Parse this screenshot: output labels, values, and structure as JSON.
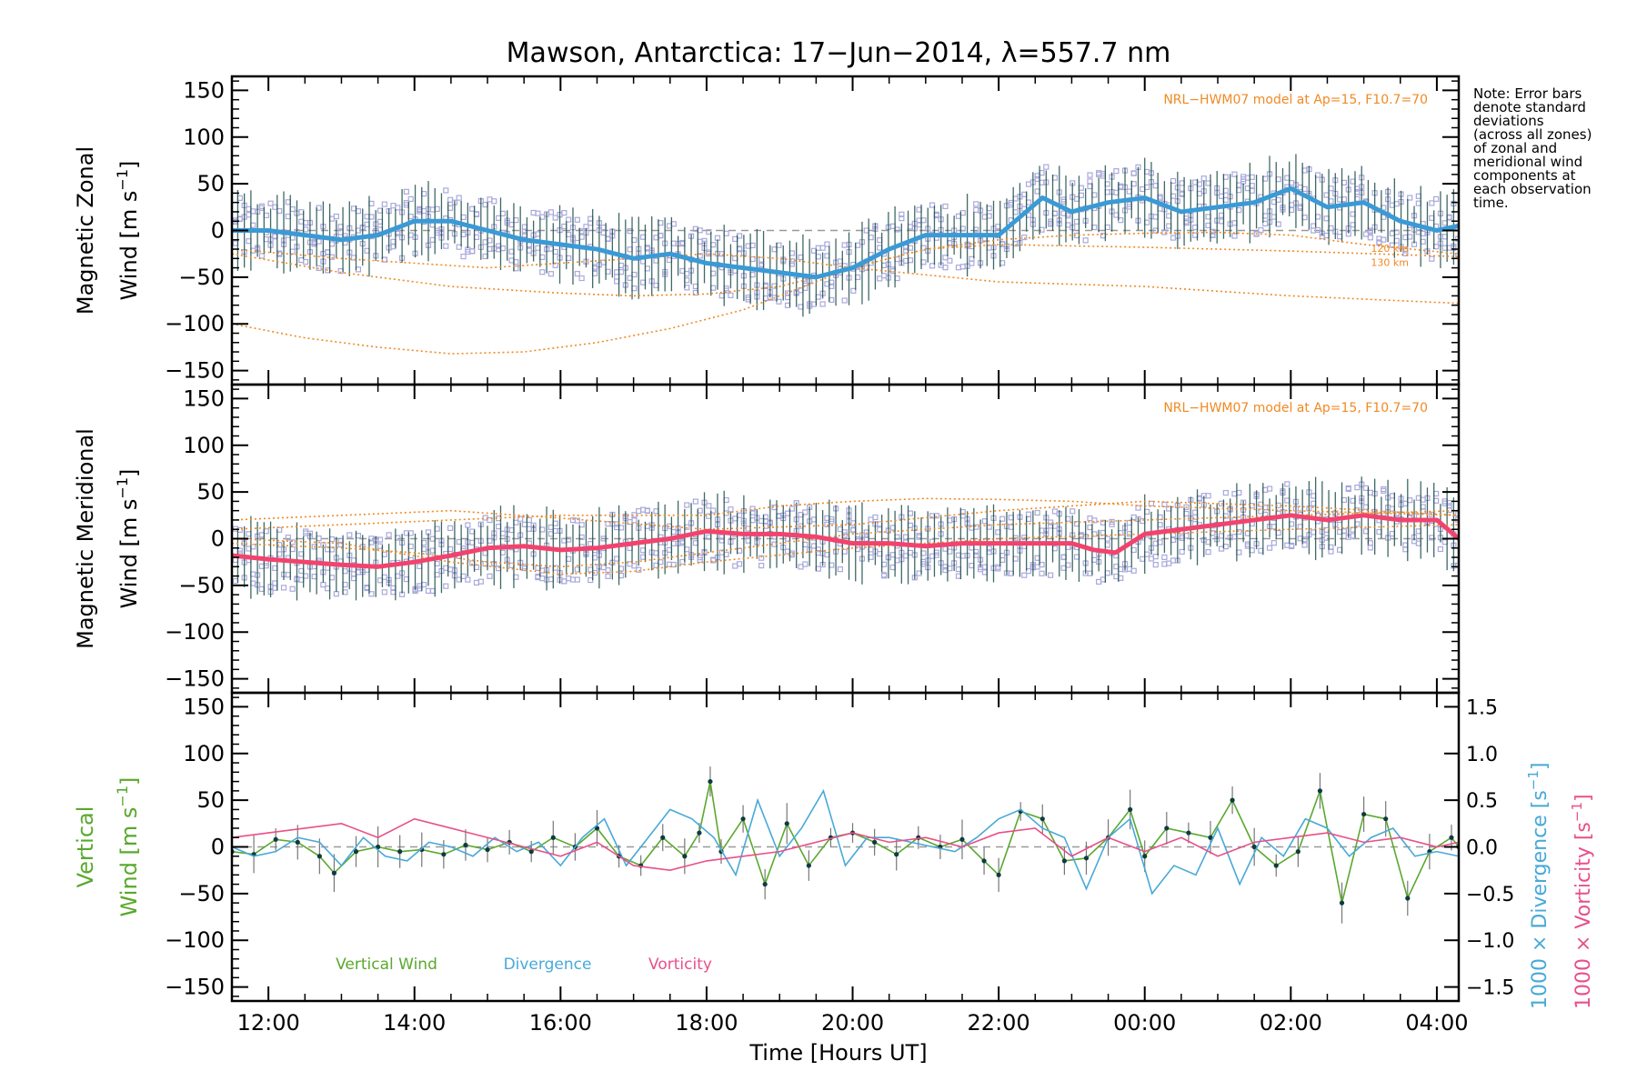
{
  "chart_data": {
    "type": "line",
    "title": "Mawson, Antarctica: 17−Jun−2014, λ=557.7 nm",
    "xlabel": "Time [Hours UT]",
    "x_tick_labels": [
      "12:00",
      "14:00",
      "16:00",
      "18:00",
      "20:00",
      "22:00",
      "00:00",
      "02:00",
      "04:00"
    ],
    "x_tick_hours": [
      12,
      14,
      16,
      18,
      20,
      22,
      24,
      26,
      28
    ],
    "xlim_hours": [
      11.5,
      28.3
    ],
    "note_lines": [
      "Note: Error bars",
      "denote standard",
      "deviations",
      "(across all zones)",
      "of zonal and",
      "meridional wind",
      "components at",
      "each observation",
      "time."
    ],
    "colors": {
      "zonal": "#3a9ad6",
      "zonal_gap": "#2b4fd6",
      "meridional": "#f2436e",
      "model": "#f08a24",
      "vertical": "#5aa82e",
      "divergence": "#48a9d8",
      "vorticity": "#e8508a",
      "errorbar": "#1f4f4a",
      "zone_points": "#a9a9dc",
      "dashed": "#999999"
    },
    "panels": [
      {
        "id": "zonal",
        "ylabel_line1": "Magnetic Zonal",
        "ylabel_line2": "Wind [m s",
        "ylabel_sup": "−1",
        "ylabel_close": "]",
        "ylim": [
          -165,
          165
        ],
        "y_ticks": [
          150,
          100,
          50,
          0,
          -50,
          -100,
          -150
        ],
        "y_tick_labels": [
          "150",
          "100",
          "50",
          "0",
          "−50",
          "−100",
          "−150"
        ],
        "model_label": "NRL−HWM07 model at Ap=15, F10.7=70",
        "model_altitudes": [
          "120 km",
          "130 km"
        ],
        "series": [
          {
            "name": "zonal",
            "x": [
              11.5,
              12,
              12.5,
              13,
              13.5,
              14,
              14.5,
              15,
              15.5,
              16,
              16.5,
              17,
              17.5,
              18,
              18.5,
              19,
              19.5,
              20,
              20.5,
              21,
              21.5,
              22,
              22.3,
              22.6,
              23,
              23.5,
              24,
              24.5,
              25,
              25.5,
              26,
              26.5,
              27,
              27.5,
              28,
              28.3
            ],
            "y": [
              0,
              0,
              -5,
              -10,
              -5,
              10,
              10,
              0,
              -10,
              -15,
              -20,
              -30,
              -25,
              -35,
              -40,
              -45,
              -50,
              -40,
              -20,
              -5,
              -5,
              -5,
              15,
              35,
              20,
              30,
              35,
              20,
              25,
              30,
              45,
              25,
              30,
              10,
              0,
              5
            ]
          }
        ],
        "models": [
          {
            "name": "model-1",
            "x": [
              11.5,
              13,
              15,
              17,
              18,
              19,
              20,
              22,
              24,
              26,
              28.3
            ],
            "y": [
              -20,
              -30,
              -40,
              -30,
              -25,
              -30,
              -40,
              -55,
              -60,
              -70,
              -78
            ]
          },
          {
            "name": "model-2",
            "x": [
              11.5,
              13,
              14.5,
              16,
              17,
              18,
              19,
              20,
              21,
              22,
              24,
              26,
              28.3
            ],
            "y": [
              -25,
              -45,
              -60,
              -67,
              -70,
              -68,
              -60,
              -40,
              -20,
              -15,
              -18,
              -22,
              -28
            ]
          },
          {
            "name": "model-3",
            "x": [
              11.5,
              12.5,
              13.5,
              14.5,
              15.5,
              16.5,
              17.5,
              18.5,
              19,
              19.5,
              20,
              21,
              22,
              23,
              24,
              25,
              26,
              27,
              28.3
            ],
            "y": [
              -100,
              -115,
              -125,
              -132,
              -130,
              -120,
              -105,
              -85,
              -70,
              -55,
              -40,
              -20,
              -10,
              -5,
              -3,
              -2,
              -5,
              -15,
              -25
            ]
          }
        ]
      },
      {
        "id": "meridional",
        "ylabel_line1": "Magnetic Meridional",
        "ylabel_line2": "Wind [m s",
        "ylabel_sup": "−1",
        "ylabel_close": "]",
        "ylim": [
          -165,
          165
        ],
        "y_ticks": [
          150,
          100,
          50,
          0,
          -50,
          -100,
          -150
        ],
        "y_tick_labels": [
          "150",
          "100",
          "50",
          "0",
          "−50",
          "−100",
          "−150"
        ],
        "model_label": "NRL−HWM07 model at Ap=15, F10.7=70",
        "series": [
          {
            "name": "meridional",
            "x": [
              11.5,
              12,
              12.5,
              13,
              13.5,
              14,
              14.5,
              15,
              15.5,
              16,
              16.5,
              17,
              17.5,
              18,
              18.5,
              19,
              19.5,
              20,
              20.5,
              21,
              21.5,
              22,
              22.5,
              23,
              23.3,
              23.6,
              24,
              24.5,
              25,
              25.5,
              26,
              26.5,
              27,
              27.5,
              28,
              28.3
            ],
            "y": [
              -18,
              -22,
              -25,
              -28,
              -30,
              -25,
              -18,
              -10,
              -8,
              -12,
              -10,
              -5,
              0,
              8,
              5,
              5,
              2,
              -5,
              -5,
              -8,
              -5,
              -5,
              -5,
              -5,
              -12,
              -15,
              5,
              10,
              15,
              20,
              25,
              20,
              25,
              20,
              20,
              0
            ]
          }
        ],
        "models": [
          {
            "name": "model-1",
            "x": [
              11.5,
              13,
              14.5,
              16,
              18,
              20,
              22,
              24,
              26,
              28.3
            ],
            "y": [
              20,
              25,
              30,
              22,
              10,
              15,
              30,
              40,
              35,
              25
            ]
          },
          {
            "name": "model-2",
            "x": [
              11.5,
              13,
              14.5,
              16,
              18,
              19,
              20,
              21,
              22,
              23,
              24,
              26,
              28.3
            ],
            "y": [
              10,
              15,
              20,
              25,
              25,
              35,
              40,
              43,
              42,
              40,
              35,
              30,
              25
            ]
          },
          {
            "name": "model-3",
            "x": [
              11.5,
              13,
              14.5,
              16,
              17,
              18,
              20,
              22,
              24,
              26,
              28.3
            ],
            "y": [
              0,
              -5,
              -25,
              -38,
              -35,
              -25,
              -10,
              0,
              5,
              10,
              15
            ]
          },
          {
            "name": "model-4",
            "x": [
              11.5,
              13,
              14,
              15,
              16,
              17,
              18,
              19,
              20,
              21,
              22,
              24,
              26,
              28.3
            ],
            "y": [
              -5,
              -10,
              -15,
              -25,
              -30,
              -25,
              -15,
              -5,
              5,
              10,
              15,
              20,
              25,
              30
            ]
          }
        ]
      },
      {
        "id": "vertical",
        "ylabel_line1": "Vertical",
        "ylabel_line2": "Wind [m s",
        "ylabel_sup": "−1",
        "ylabel_close": "]",
        "ylim": [
          -165,
          165
        ],
        "y_ticks": [
          150,
          100,
          50,
          0,
          -50,
          -100,
          -150
        ],
        "y_tick_labels": [
          "150",
          "100",
          "50",
          "0",
          "−50",
          "−100",
          "−150"
        ],
        "right_ylim": [
          -1.65,
          1.65
        ],
        "right_ticks": [
          1.5,
          1.0,
          0.5,
          0.0,
          -0.5,
          -1.0,
          -1.5
        ],
        "right_tick_labels": [
          "1.5",
          "1.0",
          "0.5",
          "0.0",
          "−0.5",
          "−1.0",
          "−1.5"
        ],
        "right_label1": "1000 × Divergence [s",
        "right_label2": "1000 × Vorticity [s",
        "right_label_sup": "−1",
        "right_label_close": "]",
        "legend": [
          "Vertical Wind",
          "Divergence",
          "Vorticity"
        ],
        "series": [
          {
            "name": "Vertical Wind",
            "axis": "left",
            "x": [
              11.5,
              11.8,
              12.1,
              12.4,
              12.7,
              12.9,
              13.2,
              13.5,
              13.8,
              14.1,
              14.4,
              14.7,
              15,
              15.3,
              15.6,
              15.9,
              16.2,
              16.5,
              16.8,
              17.1,
              17.4,
              17.7,
              17.9,
              18.05,
              18.2,
              18.5,
              18.8,
              19.1,
              19.4,
              19.7,
              20,
              20.3,
              20.6,
              20.9,
              21.2,
              21.5,
              21.8,
              22,
              22.3,
              22.6,
              22.9,
              23.2,
              23.5,
              23.8,
              24,
              24.3,
              24.6,
              24.9,
              25.2,
              25.5,
              25.8,
              26.1,
              26.4,
              26.7,
              27,
              27.3,
              27.6,
              27.9,
              28.2,
              28.3
            ],
            "y": [
              -5,
              -8,
              8,
              5,
              -10,
              -28,
              -5,
              0,
              -5,
              -3,
              -8,
              2,
              -3,
              5,
              -5,
              10,
              0,
              20,
              -10,
              -20,
              10,
              -10,
              15,
              70,
              -5,
              30,
              -40,
              25,
              -20,
              10,
              15,
              5,
              -8,
              10,
              0,
              8,
              -15,
              -30,
              38,
              30,
              -15,
              -12,
              10,
              40,
              -10,
              20,
              15,
              10,
              50,
              0,
              -20,
              -5,
              60,
              -60,
              35,
              30,
              -55,
              -5,
              10,
              0
            ]
          },
          {
            "name": "Divergence",
            "axis": "right",
            "x": [
              11.5,
              11.8,
              12.1,
              12.4,
              12.7,
              13,
              13.3,
              13.6,
              13.9,
              14.2,
              14.5,
              14.8,
              15.1,
              15.4,
              15.7,
              16,
              16.3,
              16.6,
              16.9,
              17.2,
              17.5,
              17.8,
              18.1,
              18.4,
              18.7,
              19,
              19.3,
              19.6,
              19.9,
              20.2,
              20.5,
              20.8,
              21.1,
              21.4,
              21.7,
              22,
              22.3,
              22.6,
              22.9,
              23.2,
              23.5,
              23.8,
              24.1,
              24.4,
              24.7,
              25,
              25.3,
              25.6,
              25.9,
              26.2,
              26.5,
              26.8,
              27.1,
              27.4,
              27.7,
              28,
              28.3
            ],
            "y": [
              0,
              -0.1,
              -0.05,
              0.1,
              0.05,
              -0.2,
              0.1,
              -0.1,
              -0.15,
              0.05,
              0,
              -0.1,
              0.1,
              -0.05,
              0.05,
              -0.2,
              0.1,
              0.3,
              -0.2,
              0.1,
              0.4,
              0.3,
              0.1,
              -0.3,
              0.5,
              -0.1,
              0.2,
              0.6,
              -0.2,
              0.1,
              0.1,
              0.05,
              0,
              -0.05,
              0.1,
              0.3,
              0.4,
              0.2,
              0.1,
              -0.45,
              0.1,
              0.3,
              -0.5,
              -0.2,
              -0.3,
              0.2,
              -0.4,
              0.1,
              -0.1,
              0.3,
              0.2,
              -0.1,
              0.1,
              0.2,
              -0.1,
              -0.05,
              -0.1
            ]
          },
          {
            "name": "Vorticity",
            "axis": "right",
            "x": [
              11.5,
              12,
              12.5,
              13,
              13.5,
              14,
              14.5,
              15,
              15.5,
              16,
              16.5,
              17,
              17.5,
              18,
              18.5,
              19,
              19.5,
              20,
              20.5,
              21,
              21.5,
              22,
              22.5,
              23,
              23.5,
              24,
              24.5,
              25,
              25.5,
              26,
              26.5,
              27,
              27.5,
              28,
              28.3
            ],
            "y": [
              0.1,
              0.15,
              0.2,
              0.25,
              0.1,
              0.3,
              0.2,
              0.1,
              0,
              -0.1,
              0.05,
              -0.2,
              -0.25,
              -0.15,
              -0.1,
              -0.05,
              0.05,
              0.15,
              0.05,
              0.1,
              0,
              0.15,
              0.2,
              -0.1,
              0.1,
              -0.05,
              0.1,
              -0.1,
              0.05,
              0.1,
              0.15,
              0.05,
              0.1,
              0,
              0.05
            ]
          }
        ]
      }
    ]
  }
}
